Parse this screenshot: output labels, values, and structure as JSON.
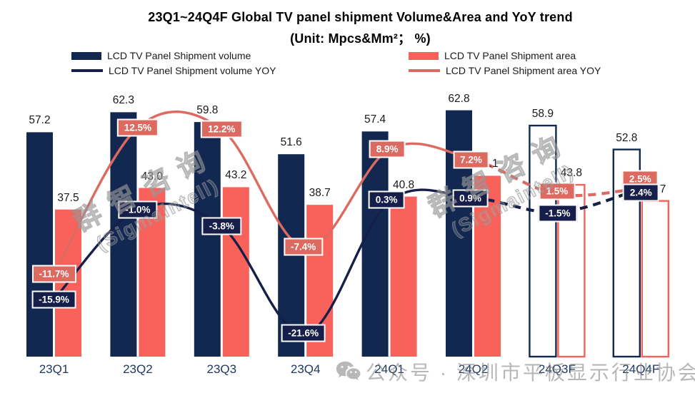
{
  "title": {
    "line1": "23Q1~24Q4F Global TV panel shipment Volume&Area and YoY trend",
    "line2": "(Unit: Mpcs&Mm²；  %)"
  },
  "legend": {
    "items": [
      {
        "label": "LCD TV Panel Shipment volume",
        "swatch": "bar",
        "color": "#132851"
      },
      {
        "label": "LCD TV Panel Shipment area",
        "swatch": "bar",
        "color": "#f9625a"
      },
      {
        "label": "LCD TV Panel Shipment volume YOY",
        "swatch": "line",
        "color": "#161f49"
      },
      {
        "label": "LCD TV Panel Shipment area YOY",
        "swatch": "line",
        "color": "#dd6a61"
      }
    ]
  },
  "watermark": {
    "diagonal": {
      "line1": "群智咨询",
      "line2": "(Sigmaintell)"
    },
    "bottom": {
      "icon": "wechat-icon",
      "text": "公众号 · 深圳市平板显示行业协会"
    }
  },
  "chart_data": {
    "type": "bar+line combo",
    "title": "23Q1~24Q4F Global TV panel shipment Volume&Area and YoY trend",
    "unit": "Mpcs & Mm² ; %",
    "categories": [
      "23Q1",
      "23Q2",
      "23Q3",
      "23Q4",
      "24Q1",
      "24Q2",
      "24Q3F",
      "24Q4F"
    ],
    "forecast_start_index": 6,
    "grid": false,
    "legend_position": "top",
    "series": [
      {
        "name": "LCD TV Panel Shipment volume",
        "type": "bar",
        "unit": "Mpcs",
        "color": "#132851",
        "values": [
          57.2,
          62.3,
          59.8,
          51.6,
          57.4,
          62.8,
          58.9,
          52.8
        ]
      },
      {
        "name": "LCD TV Panel Shipment area",
        "type": "bar",
        "unit": "Mm²",
        "color": "#f9625a",
        "values": [
          37.5,
          43.0,
          43.2,
          38.7,
          40.8,
          46.1,
          43.8,
          39.7
        ]
      },
      {
        "name": "LCD TV Panel Shipment volume YOY",
        "type": "line",
        "unit": "%",
        "color": "#161f49",
        "values": [
          -15.9,
          -1.0,
          -3.8,
          -21.6,
          0.3,
          0.9,
          -1.5,
          2.4
        ]
      },
      {
        "name": "LCD TV Panel Shipment area YOY",
        "type": "line",
        "unit": "%",
        "color": "#dd6a61",
        "values": [
          -11.7,
          12.5,
          12.2,
          -7.4,
          8.9,
          7.2,
          1.5,
          2.5
        ]
      }
    ]
  }
}
